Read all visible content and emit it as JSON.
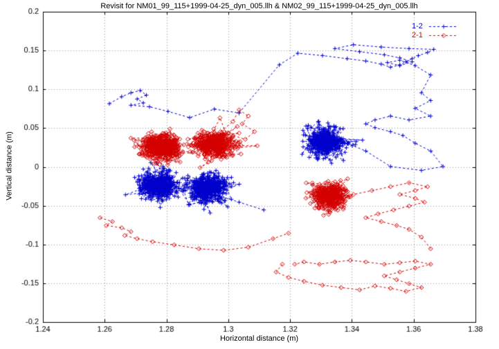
{
  "chart_data": {
    "type": "scatter",
    "title": "Revisit for NM01_99_115+1999-04-25_dyn_005.llh & NM02_99_115+1999-04-25_dyn_005.llh",
    "xlabel": "Horizontal distance (m)",
    "ylabel": "Vertical distance (m)",
    "xlim": [
      1.24,
      1.38
    ],
    "ylim": [
      -0.2,
      0.2
    ],
    "xticks": [
      1.24,
      1.26,
      1.28,
      1.3,
      1.32,
      1.34,
      1.36,
      1.38
    ],
    "xtick_labels": [
      "1.24",
      "1.26",
      "1.28",
      "1.3",
      "1.32",
      "1.34",
      "1.36",
      "1.38"
    ],
    "yticks": [
      -0.2,
      -0.15,
      -0.1,
      -0.05,
      0,
      0.05,
      0.1,
      0.15,
      0.2
    ],
    "ytick_labels": [
      "-0.2",
      "-0.15",
      "-0.1",
      "-0.05",
      "0",
      "0.05",
      "0.1",
      "0.15",
      "0.2"
    ],
    "grid": true,
    "legend_position": "top-right",
    "series": [
      {
        "name": "1-2",
        "color": "#0000cd",
        "marker": "plus",
        "clusters": [
          {
            "cx": 1.2775,
            "cy": -0.024,
            "sx": 0.003,
            "sy": 0.009,
            "n": 380
          },
          {
            "cx": 1.293,
            "cy": -0.027,
            "sx": 0.0033,
            "sy": 0.0095,
            "n": 340
          },
          {
            "cx": 1.3315,
            "cy": 0.033,
            "sx": 0.003,
            "sy": 0.0095,
            "n": 340
          }
        ],
        "segments": [
          [
            [
              1.2615,
              0.0815
            ],
            [
              1.2655,
              0.0905
            ],
            [
              1.2685,
              0.0955
            ],
            [
              1.2715,
              0.0985
            ],
            [
              1.2735,
              0.0925
            ],
            [
              1.2705,
              0.0875
            ],
            [
              1.2725,
              0.0825
            ],
            [
              1.2685,
              0.0795
            ],
            [
              1.2745,
              0.0775
            ],
            [
              1.2805,
              0.0715
            ],
            [
              1.2875,
              0.0635
            ],
            [
              1.2955,
              0.0745
            ],
            [
              1.3035,
              0.0695
            ]
          ],
          [
            [
              1.3035,
              0.0695
            ],
            [
              1.3165,
              0.1315
            ],
            [
              1.3225,
              0.1465
            ],
            [
              1.3305,
              0.1435
            ],
            [
              1.3385,
              0.1395
            ],
            [
              1.3445,
              0.1365
            ],
            [
              1.3495,
              0.1325
            ],
            [
              1.3525,
              0.1285
            ],
            [
              1.3555,
              0.1315
            ],
            [
              1.3575,
              0.1355
            ],
            [
              1.3595,
              0.1395
            ],
            [
              1.3615,
              0.1435
            ],
            [
              1.3645,
              0.1475
            ],
            [
              1.3665,
              0.1515
            ],
            [
              1.3585,
              0.1525
            ],
            [
              1.3495,
              0.1545
            ],
            [
              1.3405,
              0.1575
            ],
            [
              1.3345,
              0.1525
            ],
            [
              1.3425,
              0.1485
            ],
            [
              1.3505,
              0.1445
            ],
            [
              1.3555,
              0.1405
            ],
            [
              1.3595,
              0.1355
            ],
            [
              1.3555,
              0.1305
            ],
            [
              1.3515,
              0.1345
            ],
            [
              1.3555,
              0.1375
            ],
            [
              1.3605,
              0.1305
            ],
            [
              1.3655,
              0.1185
            ],
            [
              1.3625,
              0.0955
            ],
            [
              1.3655,
              0.0855
            ],
            [
              1.3605,
              0.0755
            ],
            [
              1.3655,
              0.0655
            ],
            [
              1.3585,
              0.0605
            ],
            [
              1.3525,
              0.0655
            ],
            [
              1.3475,
              0.0605
            ],
            [
              1.3445,
              0.0555
            ],
            [
              1.3475,
              0.0505
            ],
            [
              1.3525,
              0.0455
            ],
            [
              1.3565,
              0.0405
            ],
            [
              1.3605,
              0.0305
            ],
            [
              1.3655,
              0.0205
            ],
            [
              1.3695,
              0.0005
            ],
            [
              1.3625,
              -0.0045
            ],
            [
              1.3525,
              0.0005
            ],
            [
              1.3445,
              0.0205
            ],
            [
              1.3385,
              0.0305
            ],
            [
              1.3335,
              0.0355
            ]
          ],
          [
            [
              1.2955,
              -0.0355
            ],
            [
              1.3035,
              -0.0455
            ],
            [
              1.3115,
              -0.0555
            ]
          ]
        ]
      },
      {
        "name": "2-1",
        "color": "#d40000",
        "marker": "diamond",
        "clusters": [
          {
            "cx": 1.2785,
            "cy": 0.026,
            "sx": 0.0032,
            "sy": 0.0085,
            "n": 380
          },
          {
            "cx": 1.2955,
            "cy": 0.03,
            "sx": 0.0033,
            "sy": 0.009,
            "n": 340
          },
          {
            "cx": 1.3325,
            "cy": -0.038,
            "sx": 0.0028,
            "sy": 0.0085,
            "n": 300
          }
        ],
        "segments": [
          [
            [
              1.2585,
              -0.0655
            ],
            [
              1.2625,
              -0.0705
            ],
            [
              1.2605,
              -0.0755
            ],
            [
              1.2655,
              -0.0785
            ],
            [
              1.2685,
              -0.0835
            ],
            [
              1.2665,
              -0.0885
            ],
            [
              1.2705,
              -0.0925
            ],
            [
              1.2755,
              -0.0965
            ],
            [
              1.2825,
              -0.1005
            ],
            [
              1.2905,
              -0.1055
            ],
            [
              1.2985,
              -0.1075
            ],
            [
              1.3065,
              -0.1035
            ],
            [
              1.3145,
              -0.0925
            ],
            [
              1.3195,
              -0.0855
            ]
          ],
          [
            [
              1.3175,
              -0.1255
            ],
            [
              1.3155,
              -0.1355
            ],
            [
              1.3195,
              -0.1425
            ],
            [
              1.3245,
              -0.1475
            ],
            [
              1.3305,
              -0.1525
            ],
            [
              1.3365,
              -0.1555
            ],
            [
              1.3425,
              -0.1585
            ],
            [
              1.3475,
              -0.1535
            ],
            [
              1.3525,
              -0.1565
            ],
            [
              1.3575,
              -0.1605
            ],
            [
              1.3625,
              -0.1555
            ],
            [
              1.3585,
              -0.1505
            ],
            [
              1.3545,
              -0.1455
            ],
            [
              1.3505,
              -0.1405
            ],
            [
              1.3555,
              -0.1355
            ],
            [
              1.3605,
              -0.1305
            ],
            [
              1.3655,
              -0.1255
            ],
            [
              1.3605,
              -0.1215
            ],
            [
              1.3555,
              -0.1235
            ],
            [
              1.3505,
              -0.1255
            ],
            [
              1.3445,
              -0.1225
            ],
            [
              1.3395,
              -0.1205
            ],
            [
              1.3345,
              -0.1225
            ],
            [
              1.3295,
              -0.1255
            ],
            [
              1.3245,
              -0.1225
            ],
            [
              1.3215,
              -0.1255
            ]
          ],
          [
            [
              1.3655,
              -0.1055
            ],
            [
              1.3625,
              -0.0905
            ],
            [
              1.3585,
              -0.0805
            ],
            [
              1.3545,
              -0.0755
            ],
            [
              1.3495,
              -0.0705
            ],
            [
              1.3445,
              -0.0655
            ],
            [
              1.3485,
              -0.0605
            ],
            [
              1.3535,
              -0.0555
            ],
            [
              1.3585,
              -0.0505
            ],
            [
              1.3635,
              -0.0455
            ],
            [
              1.3605,
              -0.0405
            ],
            [
              1.3555,
              -0.0355
            ],
            [
              1.3605,
              -0.0305
            ],
            [
              1.3645,
              -0.0255
            ],
            [
              1.3585,
              -0.0205
            ],
            [
              1.3525,
              -0.0255
            ],
            [
              1.3465,
              -0.0305
            ],
            [
              1.3405,
              -0.0355
            ],
            [
              1.3355,
              -0.0385
            ]
          ],
          [
            [
              1.2975,
              0.0455
            ],
            [
              1.3015,
              0.0585
            ],
            [
              1.3035,
              0.0735
            ],
            [
              1.3065,
              0.0655
            ],
            [
              1.3045,
              0.0555
            ],
            [
              1.3085,
              0.0455
            ],
            [
              1.3055,
              0.0355
            ],
            [
              1.3015,
              0.0405
            ]
          ]
        ]
      }
    ]
  }
}
